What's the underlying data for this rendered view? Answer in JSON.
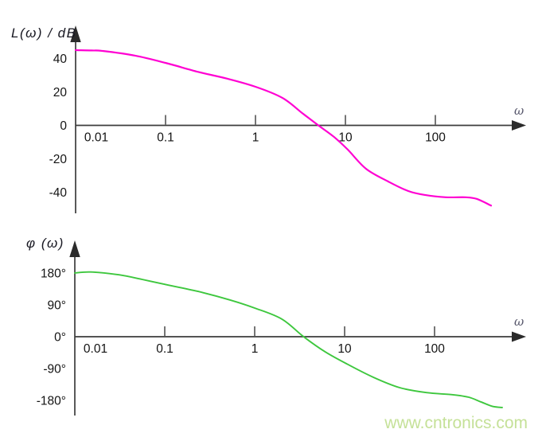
{
  "watermark": "www.cntronics.com",
  "colors": {
    "magnitude_curve": "#ff00d2",
    "phase_curve": "#3ec73e",
    "axis": "#3c3c3c",
    "tick_text": "#141414",
    "watermark_text": "#c5e198"
  },
  "chart_data": [
    {
      "id": "magnitude",
      "type": "line",
      "title": "L(ω) / dB",
      "x_axis_label": "ω",
      "x_scale": "log",
      "xlim": [
        0.01,
        1000
      ],
      "ylim": [
        -50,
        50
      ],
      "x_ticks": [
        0.01,
        0.1,
        1,
        10,
        100
      ],
      "x_tick_labels": [
        "0.01",
        "0.1",
        "1",
        "10",
        "100"
      ],
      "y_ticks": [
        40,
        20,
        0,
        -20,
        -40
      ],
      "y_tick_labels": [
        "40",
        "20",
        "0",
        "-20",
        "-40"
      ],
      "color": "#ff00d2",
      "points": [
        [
          0.01,
          45
        ],
        [
          0.015,
          44.8
        ],
        [
          0.02,
          44.5
        ],
        [
          0.046,
          41.7
        ],
        [
          0.1,
          37.4
        ],
        [
          0.23,
          32
        ],
        [
          0.48,
          28
        ],
        [
          1,
          23.1
        ],
        [
          2,
          16.4
        ],
        [
          3.3,
          7.4
        ],
        [
          5,
          0
        ],
        [
          7.5,
          -7
        ],
        [
          10.6,
          -14.5
        ],
        [
          17,
          -26
        ],
        [
          30,
          -33.6
        ],
        [
          50,
          -39.3
        ],
        [
          78,
          -41.7
        ],
        [
          130,
          -43
        ],
        [
          215,
          -43
        ],
        [
          290,
          -44
        ],
        [
          416,
          -48
        ]
      ]
    },
    {
      "id": "phase",
      "type": "line",
      "title": "φ (ω)",
      "x_axis_label": "ω",
      "x_scale": "log",
      "xlim": [
        0.01,
        1000
      ],
      "ylim": [
        -210,
        200
      ],
      "x_ticks": [
        0.01,
        0.1,
        1,
        10,
        100
      ],
      "x_tick_labels": [
        "0.01",
        "0.1",
        "1",
        "10",
        "100"
      ],
      "y_ticks": [
        180,
        90,
        0,
        -90,
        -180
      ],
      "y_tick_labels": [
        "180°",
        "90°",
        "0°",
        "-90°",
        "-180°"
      ],
      "color": "#3ec73e",
      "points": [
        [
          0.01,
          180
        ],
        [
          0.015,
          183
        ],
        [
          0.031,
          175
        ],
        [
          0.056,
          162
        ],
        [
          0.1,
          148
        ],
        [
          0.235,
          128
        ],
        [
          0.53,
          104
        ],
        [
          1,
          81
        ],
        [
          2,
          50
        ],
        [
          3.5,
          0
        ],
        [
          6.1,
          -43
        ],
        [
          10.6,
          -77
        ],
        [
          21,
          -115
        ],
        [
          41,
          -144
        ],
        [
          81,
          -158
        ],
        [
          160,
          -164
        ],
        [
          240,
          -171
        ],
        [
          326,
          -184
        ],
        [
          443,
          -197
        ],
        [
          565,
          -200
        ]
      ]
    }
  ]
}
